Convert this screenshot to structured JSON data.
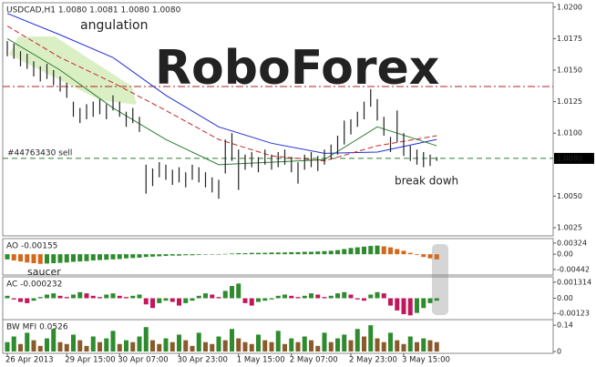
{
  "chart_data": [
    {
      "type": "ohlc",
      "title": "USDCAD,H1  1.0080 1.0081 1.0080 1.0080",
      "color": "#222222",
      "high": [
        1.0173,
        1.0171,
        1.0165,
        1.0163,
        1.0157,
        1.0153,
        1.0155,
        1.015,
        1.0145,
        1.014,
        1.0125,
        1.012,
        1.0123,
        1.0125,
        1.0127,
        1.0123,
        1.013,
        1.0125,
        1.0117,
        1.012,
        1.0113,
        1.0075,
        1.0072,
        1.0077,
        1.0075,
        1.0071,
        1.0073,
        1.0069,
        1.0075,
        1.0073,
        1.0069,
        1.0065,
        1.0063,
        1.0095,
        1.01,
        1.0087,
        1.0083,
        1.0085,
        1.0081,
        1.0087,
        1.0083,
        1.0085,
        1.0087,
        1.0081,
        1.0077,
        1.0083,
        1.0085,
        1.0082,
        1.0087,
        1.0091,
        1.0098,
        1.011,
        1.0111,
        1.0117,
        1.0125,
        1.0135,
        1.0127,
        1.0113,
        1.0097,
        1.0118,
        1.01,
        1.009,
        1.0087,
        1.0085,
        1.0083,
        1.0081
      ],
      "low": [
        1.0161,
        1.0159,
        1.0153,
        1.0151,
        1.0145,
        1.0141,
        1.0143,
        1.0138,
        1.0133,
        1.0128,
        1.0113,
        1.0108,
        1.0111,
        1.0113,
        1.0115,
        1.0111,
        1.0118,
        1.0113,
        1.0105,
        1.0108,
        1.0101,
        1.0052,
        1.0058,
        1.0065,
        1.0063,
        1.0059,
        1.0061,
        1.0057,
        1.0063,
        1.0061,
        1.0057,
        1.0053,
        1.0048,
        1.0068,
        1.0078,
        1.0055,
        1.0071,
        1.0073,
        1.0069,
        1.0075,
        1.0071,
        1.0073,
        1.0075,
        1.0069,
        1.006,
        1.0071,
        1.0073,
        1.007,
        1.0075,
        1.0079,
        1.0083,
        1.0091,
        1.0099,
        1.0105,
        1.0111,
        1.0121,
        1.011,
        1.0098,
        1.0085,
        1.0093,
        1.0082,
        1.0078,
        1.0075,
        1.0073,
        1.0074,
        1.0078
      ],
      "lines": [
        {
          "color": "#1f2fd0",
          "dash": false,
          "x": [
            0,
            8,
            16,
            24,
            32,
            40,
            48,
            56,
            65
          ],
          "values": [
            1.0195,
            1.0178,
            1.016,
            1.013,
            1.0105,
            1.0092,
            1.0084,
            1.0085,
            1.0095
          ]
        },
        {
          "color": "#c62828",
          "dash": true,
          "x": [
            0,
            8,
            16,
            24,
            32,
            40,
            48,
            56,
            65
          ],
          "values": [
            1.0185,
            1.016,
            1.014,
            1.0118,
            1.0095,
            1.0082,
            1.0078,
            1.009,
            1.0098
          ]
        },
        {
          "color": "#2e7d32",
          "dash": false,
          "x": [
            0,
            8,
            16,
            24,
            32,
            40,
            48,
            56,
            65
          ],
          "values": [
            1.0175,
            1.015,
            1.012,
            1.0095,
            1.0075,
            1.0077,
            1.0079,
            1.0105,
            1.009
          ]
        }
      ],
      "hlines": [
        {
          "value": 1.0137,
          "color": "#b22222",
          "style": "dashdot"
        },
        {
          "value": 1.008,
          "color": "#2e7d32",
          "style": "dash"
        }
      ],
      "ylim": [
        1.002,
        1.0202
      ],
      "yticks": [
        {
          "value": 1.0025,
          "label": "1.0025"
        },
        {
          "value": 1.005,
          "label": "1.0050"
        },
        {
          "value": 1.01,
          "label": "1.0100"
        },
        1.0125,
        {
          "value": 1.015,
          "label": "1.0150"
        },
        1.0175,
        {
          "value": 1.02,
          "label": "1.0200"
        }
      ],
      "price_label": {
        "value": 1.008,
        "label": "1.0080"
      },
      "annotations": [
        {
          "text": "angulation",
          "color": "#2e7d32"
        },
        {
          "text": "#44763430 sell",
          "color": "#222222"
        },
        {
          "text": "break dowh",
          "color": "#c62828"
        },
        {
          "text": "RoboForex",
          "color": "#e6e6e6"
        }
      ]
    },
    {
      "type": "histogram",
      "title": "AO -0.00155",
      "up_color": "#2e8b2e",
      "down_color": "#d2691e",
      "values": [
        -0.0015,
        -0.0018,
        -0.0021,
        -0.0024,
        -0.0026,
        -0.0028,
        -0.0027,
        -0.0026,
        -0.0025,
        -0.0024,
        -0.0022,
        -0.0021,
        -0.002,
        -0.0018,
        -0.0017,
        -0.0016,
        -0.0015,
        -0.0014,
        -0.0012,
        -0.0011,
        -0.001,
        -0.0008,
        -0.0007,
        -0.0006,
        -0.0005,
        -0.0004,
        -0.0004,
        -0.0003,
        -0.0003,
        -0.0002,
        -0.0001,
        -0.0001,
        0,
        0.0001,
        0.0002,
        0.0003,
        0.0003,
        0.0004,
        0.0004,
        0.0004,
        0.0005,
        0.0005,
        0.0005,
        0.0006,
        0.0006,
        0.0007,
        0.0007,
        0.0008,
        0.0009,
        0.001,
        0.0012,
        0.0015,
        0.0018,
        0.002,
        0.0022,
        0.0024,
        0.0025,
        0.0023,
        0.002,
        0.0015,
        0.001,
        0.0004,
        -0.0002,
        -0.0008,
        -0.0012,
        -0.0015
      ],
      "ylim": [
        -0.0055,
        0.004
      ],
      "yticks": [
        0.00324,
        {
          "value": 0,
          "label": "0.00"
        },
        -0.00442
      ],
      "annotations": [
        {
          "text": "saucer",
          "color": "#2e7d32"
        }
      ]
    },
    {
      "type": "histogram",
      "title": "AC -0.000232",
      "up_color": "#2e8b2e",
      "down_color": "#c2185b",
      "values": [
        0.0002,
        -0.0001,
        -0.0003,
        -0.0004,
        -0.0002,
        0.0001,
        0.0003,
        0.0004,
        0.0002,
        0.0001,
        0.0003,
        0.0005,
        0.0004,
        0.0002,
        0.0001,
        0.0003,
        0.0004,
        0.0002,
        0.0001,
        0.0002,
        0.0003,
        -0.0005,
        -0.0008,
        -0.0004,
        -0.0002,
        -0.0003,
        -0.0006,
        -0.0004,
        -0.0002,
        0.0002,
        0.0004,
        0.0003,
        0.0001,
        0.0006,
        0.001,
        0.0012,
        -0.0004,
        -0.0006,
        -0.0003,
        -0.0002,
        -0.0001,
        0.0002,
        0.0003,
        0.0002,
        0.0001,
        0.0002,
        0.0004,
        0.0003,
        0.0001,
        0.0002,
        0.0004,
        0.0005,
        0.0003,
        -0.0001,
        -0.0002,
        0.0003,
        0.0005,
        0.0004,
        -0.0006,
        -0.001,
        -0.0013,
        -0.0014,
        -0.0012,
        -0.0008,
        -0.0004,
        -0.0002
      ],
      "ylim": [
        -0.0016,
        0.0016
      ],
      "yticks": [
        0.001314,
        {
          "value": 0,
          "label": "0.00"
        },
        -0.00123
      ]
    },
    {
      "type": "histogram",
      "title": "BW MFI 0.0526",
      "up_color": "#2e8b2e",
      "down_color": "#8b5a2b",
      "values": [
        0.05,
        0.08,
        0.04,
        0.1,
        0.06,
        0.03,
        0.07,
        0.12,
        0.05,
        0.04,
        0.09,
        0.06,
        0.03,
        0.08,
        0.05,
        0.07,
        0.11,
        0.04,
        0.06,
        0.05,
        0.08,
        0.13,
        0.06,
        0.04,
        0.07,
        0.05,
        0.09,
        0.06,
        0.03,
        0.1,
        0.05,
        0.04,
        0.08,
        0.06,
        0.12,
        0.07,
        0.05,
        0.04,
        0.09,
        0.06,
        0.05,
        0.11,
        0.04,
        0.07,
        0.05,
        0.08,
        0.06,
        0.03,
        0.1,
        0.05,
        0.07,
        0.09,
        0.06,
        0.12,
        0.08,
        0.14,
        0.07,
        0.05,
        0.1,
        0.06,
        0.04,
        0.08,
        0.05,
        0.07,
        0.06,
        0.05
      ],
      "ylim": [
        0,
        0.16
      ],
      "yticks": [
        0.14,
        0
      ],
      "categories": [
        "26 Apr 2013",
        null,
        null,
        null,
        null,
        null,
        null,
        null,
        null,
        "29 Apr 15:00",
        null,
        null,
        null,
        null,
        null,
        null,
        null,
        "30 Apr 07:00",
        null,
        null,
        null,
        null,
        null,
        null,
        null,
        null,
        "30 Apr 23:00",
        null,
        null,
        null,
        null,
        null,
        null,
        null,
        null,
        "1 May 15:00",
        null,
        null,
        null,
        null,
        null,
        null,
        null,
        "2 May 07:00",
        null,
        null,
        null,
        null,
        null,
        null,
        null,
        null,
        "2 May 23:00",
        null,
        null,
        null,
        null,
        null,
        null,
        null,
        "3 May 15:00",
        null,
        null,
        null,
        null,
        null
      ]
    }
  ]
}
